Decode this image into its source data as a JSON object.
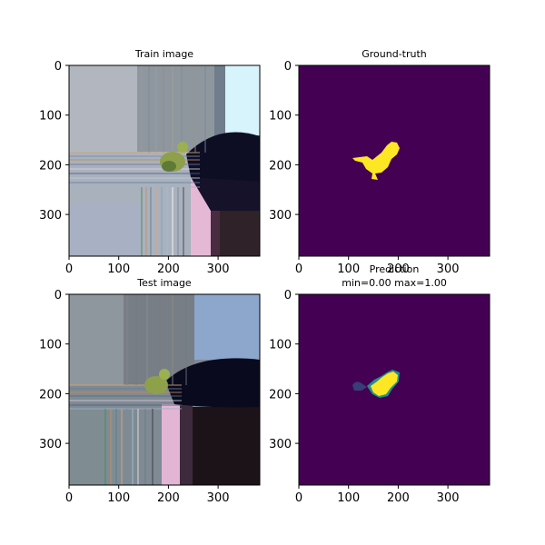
{
  "chart_data": [
    {
      "type": "image",
      "title": "Train image",
      "x_ticks": [
        "0",
        "100",
        "200",
        "300"
      ],
      "y_ticks": [
        "0",
        "100",
        "200",
        "300"
      ],
      "xlim": [
        0,
        384
      ],
      "ylim": [
        384,
        0
      ],
      "content": "photo-with-edge-streaks"
    },
    {
      "type": "heatmap",
      "title": "Ground-truth",
      "x_ticks": [
        "0",
        "100",
        "200",
        "300"
      ],
      "y_ticks": [
        "0",
        "100",
        "200",
        "300"
      ],
      "xlim": [
        0,
        384
      ],
      "ylim": [
        384,
        0
      ],
      "colormap": "viridis",
      "background_color": "#440154",
      "mask_color": "#fde725"
    },
    {
      "type": "image",
      "title": "Test image",
      "x_ticks": [
        "0",
        "100",
        "200",
        "300"
      ],
      "y_ticks": [
        "0",
        "100",
        "200",
        "300"
      ],
      "xlim": [
        0,
        384
      ],
      "ylim": [
        384,
        0
      ],
      "content": "photo-with-edge-streaks"
    },
    {
      "type": "heatmap",
      "title": "Prediction",
      "subtitle": "min=0.00 max=1.00",
      "x_ticks": [
        "0",
        "100",
        "200",
        "300"
      ],
      "y_ticks": [
        "0",
        "100",
        "200",
        "300"
      ],
      "xlim": [
        0,
        384
      ],
      "ylim": [
        384,
        0
      ],
      "colormap": "viridis",
      "value_min": 0.0,
      "value_max": 1.0,
      "background_color": "#440154",
      "mask_color": "#fde725"
    }
  ]
}
